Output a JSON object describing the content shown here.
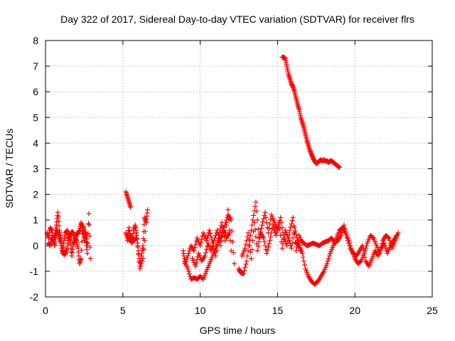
{
  "chart_data": {
    "type": "scatter",
    "title": "Day 322 of 2017, Sidereal Day-to-day VTEC variation (SDTVAR) for receiver flrs",
    "xlabel": "GPS time / hours",
    "ylabel": "SDTVAR / TECUs",
    "xlim": [
      0,
      25
    ],
    "ylim": [
      -2,
      8
    ],
    "xticks": [
      "0",
      "5",
      "10",
      "15",
      "20",
      "25"
    ],
    "yticks": [
      "-2",
      "-1",
      "0",
      "1",
      "2",
      "3",
      "4",
      "5",
      "6",
      "7",
      "8"
    ],
    "grid": true,
    "marker": "plus",
    "color": "#ff0000",
    "series": [
      {
        "name": "SDTVAR",
        "segments": [
          {
            "x": [
              0.1,
              0.2,
              0.3,
              0.4,
              0.5,
              0.6,
              0.7,
              0.8,
              0.9,
              1.0,
              1.1,
              1.2,
              1.3,
              1.4,
              1.5,
              1.6,
              1.7,
              1.8,
              1.9,
              2.0,
              2.1,
              2.2,
              2.3,
              2.4,
              2.5,
              2.6,
              2.7,
              2.8,
              2.9
            ],
            "y": [
              0.5,
              0.3,
              0.7,
              0.6,
              0.2,
              0.4,
              0.8,
              1.3,
              0.6,
              0.2,
              -0.2,
              -0.35,
              -0.3,
              -0.1,
              0.3,
              0.4,
              0.55,
              0.5,
              0.3,
              0.2,
              -0.1,
              -0.7,
              -0.5,
              0.8,
              0.6,
              0.3,
              -0.3,
              1.25,
              -0.5
            ]
          },
          {
            "x": [
              0.2,
              0.3,
              0.4,
              0.5,
              0.6,
              0.7,
              0.8,
              0.9,
              1.0,
              1.1,
              1.2,
              1.3,
              1.4,
              1.5,
              1.6,
              1.7,
              1.8,
              1.9,
              2.0,
              2.1,
              2.2,
              2.3,
              2.4,
              2.5,
              2.6,
              2.7
            ],
            "y": [
              0.1,
              0.0,
              0.3,
              0.2,
              0.0,
              0.6,
              0.55,
              0.3,
              0.1,
              -0.3,
              0.2,
              0.5,
              0.6,
              0.35,
              0.2,
              -0.4,
              0.1,
              0.15,
              0.4,
              0.5,
              0.6,
              0.9,
              0.7,
              0.2,
              0.5,
              0.0
            ]
          },
          {
            "x": [
              5.2,
              5.3,
              5.4,
              5.5
            ],
            "y": [
              2.1,
              1.9,
              1.7,
              1.5
            ]
          },
          {
            "x": [
              5.2,
              5.3,
              5.4,
              5.5,
              5.6,
              5.7,
              5.8,
              5.9,
              6.0,
              6.1,
              6.2,
              6.3,
              6.4,
              6.5,
              6.6
            ],
            "y": [
              0.5,
              0.3,
              0.7,
              0.2,
              0.1,
              0.6,
              0.8,
              0.4,
              -0.2,
              -0.8,
              -0.4,
              0.0,
              1.1,
              0.9,
              1.4
            ]
          },
          {
            "x": [
              5.3,
              5.5,
              5.7,
              5.9,
              6.1,
              6.3,
              6.5
            ],
            "y": [
              0.2,
              0.4,
              0.2,
              0.3,
              -0.9,
              -0.5,
              0.9
            ]
          },
          {
            "x": [
              8.9,
              9.0,
              9.2,
              9.4,
              9.6,
              9.8,
              10.0,
              10.2,
              10.4,
              10.6,
              10.8,
              11.0,
              11.2,
              11.4,
              11.6,
              11.8,
              12.0,
              12.2
            ],
            "y": [
              -0.2,
              -0.6,
              -0.9,
              -1.3,
              -1.25,
              -1.3,
              -1.2,
              -1.3,
              -1.0,
              -0.7,
              -0.4,
              -0.1,
              0.2,
              0.4,
              0.8,
              1.2,
              1.0,
              -0.7
            ]
          },
          {
            "x": [
              9.0,
              9.2,
              9.4,
              9.6,
              9.8,
              10.0,
              10.2,
              10.4,
              10.6,
              10.8,
              11.0,
              11.2,
              11.4,
              11.6,
              11.8,
              12.0
            ],
            "y": [
              -0.7,
              -0.4,
              0.0,
              -0.2,
              0.3,
              0.0,
              0.5,
              0.2,
              0.6,
              0.1,
              -0.4,
              0.4,
              0.9,
              0.2,
              1.4,
              -0.2
            ]
          },
          {
            "x": [
              9.5,
              9.7,
              9.9,
              10.1,
              10.3,
              10.5,
              10.7,
              10.9,
              11.1,
              11.3,
              11.5,
              11.7,
              11.9
            ],
            "y": [
              -0.5,
              -0.8,
              -0.3,
              -0.6,
              -0.4,
              0.1,
              -0.2,
              0.2,
              0.6,
              0.0,
              0.7,
              0.3,
              0.5
            ]
          },
          {
            "x": [
              12.5,
              12.6,
              12.8,
              13.0,
              13.2,
              13.4,
              13.6,
              13.8,
              14.0,
              14.2,
              14.4,
              14.6,
              14.8,
              15.0,
              15.2,
              15.4,
              15.6,
              15.8,
              16.0,
              16.2,
              16.4,
              16.6
            ],
            "y": [
              -0.9,
              -1.05,
              -1.1,
              -0.6,
              0.2,
              1.0,
              1.7,
              0.3,
              0.8,
              1.3,
              0.5,
              1.2,
              0.9,
              0.6,
              1.1,
              0.3,
              0.0,
              0.6,
              1.1,
              -0.2,
              0.4,
              0.1
            ]
          },
          {
            "x": [
              12.7,
              12.9,
              13.1,
              13.3,
              13.5,
              13.7,
              13.9,
              14.1,
              14.3,
              14.5,
              14.7,
              14.9,
              15.1,
              15.3,
              15.5,
              15.7,
              15.9,
              16.1,
              16.3,
              16.5
            ],
            "y": [
              -0.4,
              -0.1,
              0.5,
              -0.5,
              0.9,
              -0.2,
              0.5,
              0.3,
              -0.3,
              0.2,
              0.8,
              0.4,
              0.9,
              -0.1,
              0.6,
              0.3,
              -0.1,
              0.7,
              0.2,
              -0.2
            ]
          },
          {
            "x": [
              15.3,
              15.4,
              15.5,
              15.6,
              15.7,
              15.8,
              15.9,
              16.0,
              16.1,
              16.2,
              16.3,
              16.4,
              16.5,
              16.6,
              16.7,
              16.8,
              16.9,
              17.0,
              17.1,
              17.2,
              17.3,
              17.4,
              17.5,
              17.6,
              17.7,
              17.8,
              17.9,
              18.0,
              18.1,
              18.2,
              18.3,
              18.4,
              18.5,
              18.6,
              18.7,
              18.8,
              18.9,
              19.0
            ],
            "y": [
              7.35,
              7.35,
              7.3,
              7.0,
              6.7,
              6.5,
              6.3,
              6.2,
              6.0,
              5.75,
              5.5,
              5.3,
              5.0,
              4.8,
              4.6,
              4.35,
              4.1,
              3.9,
              3.7,
              3.55,
              3.4,
              3.3,
              3.2,
              3.25,
              3.3,
              3.35,
              3.3,
              3.35,
              3.3,
              3.3,
              3.25,
              3.3,
              3.3,
              3.25,
              3.2,
              3.15,
              3.1,
              3.05
            ]
          },
          {
            "x": [
              16.2,
              16.4,
              16.6,
              16.8,
              17.0,
              17.2,
              17.4,
              17.6,
              17.8,
              18.0,
              18.2,
              18.4,
              18.6,
              18.8,
              19.0,
              19.2,
              19.4,
              19.6,
              19.8,
              20.0,
              20.2,
              20.4,
              20.6,
              20.8,
              21.0,
              21.2,
              21.4,
              21.6,
              21.8,
              22.0,
              22.2,
              22.4,
              22.6,
              22.8
            ],
            "y": [
              0.1,
              0.0,
              -0.3,
              -0.9,
              -1.2,
              -1.4,
              -1.5,
              -1.4,
              -1.2,
              -1.0,
              -0.7,
              -0.3,
              0.0,
              0.3,
              0.6,
              0.7,
              0.5,
              0.2,
              -0.2,
              -0.5,
              -0.7,
              -0.6,
              -0.3,
              0.1,
              0.4,
              0.3,
              0.0,
              -0.3,
              0.2,
              0.4,
              0.3,
              -0.1,
              0.2,
              0.5
            ]
          },
          {
            "x": [
              16.5,
              16.7,
              16.9,
              17.1,
              17.3,
              17.5,
              17.7,
              17.9,
              18.1,
              18.3,
              18.5,
              18.7,
              18.9,
              19.1,
              19.3,
              19.5,
              19.7,
              19.9,
              20.1,
              20.3,
              20.5,
              20.7,
              20.9,
              21.1,
              21.3,
              21.5,
              21.7,
              21.9,
              22.1,
              22.3,
              22.5,
              22.7
            ],
            "y": [
              0.2,
              0.1,
              0.0,
              0.05,
              0.1,
              0.05,
              0.0,
              0.1,
              0.15,
              0.2,
              0.3,
              0.1,
              0.2,
              0.4,
              0.8,
              0.3,
              -0.1,
              -0.3,
              -0.4,
              -0.2,
              0.0,
              -0.6,
              -0.8,
              -0.5,
              -0.2,
              -0.4,
              -0.1,
              0.1,
              -0.3,
              0.0,
              0.2,
              0.4
            ]
          }
        ]
      }
    ]
  }
}
